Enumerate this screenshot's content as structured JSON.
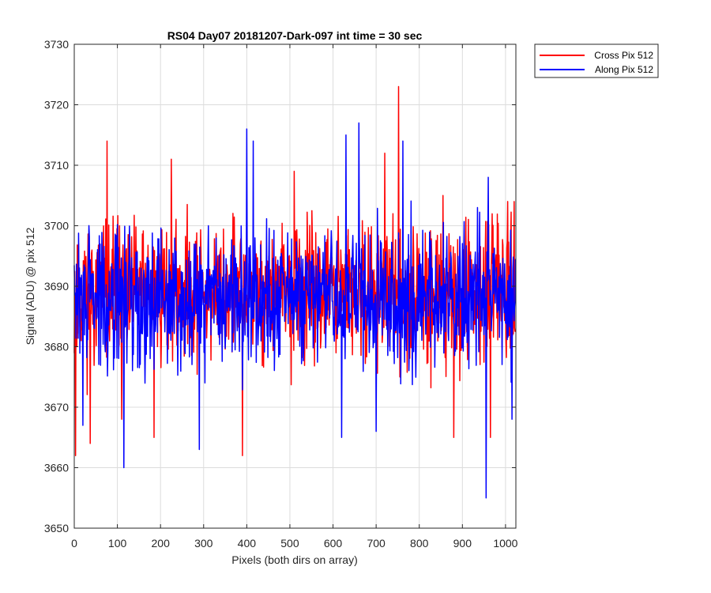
{
  "chart_data": {
    "type": "line",
    "title": "RS04 Day07 20181207-Dark-097 int time = 30 sec",
    "xlabel": "Pixels (both dirs on array)",
    "ylabel": "Signal (ADU) @ pix 512",
    "xlim": [
      0,
      1024
    ],
    "ylim": [
      3650,
      3730
    ],
    "xticks": [
      0,
      100,
      200,
      300,
      400,
      500,
      600,
      700,
      800,
      900,
      1000
    ],
    "yticks": [
      3650,
      3660,
      3670,
      3680,
      3690,
      3700,
      3710,
      3720,
      3730
    ],
    "grid": true,
    "legend_position": "outside-top-right",
    "series": [
      {
        "name": "Cross Pix 512",
        "color": "#ff0000",
        "baseline": 3689,
        "spread": 5.5,
        "count": 1024,
        "seed": 11,
        "spikes": [
          {
            "x": 3,
            "y": 3662
          },
          {
            "x": 37,
            "y": 3664
          },
          {
            "x": 76,
            "y": 3714
          },
          {
            "x": 105,
            "y": 3700
          },
          {
            "x": 110,
            "y": 3668
          },
          {
            "x": 185,
            "y": 3665
          },
          {
            "x": 225,
            "y": 3711
          },
          {
            "x": 390,
            "y": 3662
          },
          {
            "x": 510,
            "y": 3709
          },
          {
            "x": 720,
            "y": 3712
          },
          {
            "x": 752,
            "y": 3723
          },
          {
            "x": 755,
            "y": 3675
          },
          {
            "x": 855,
            "y": 3705
          },
          {
            "x": 880,
            "y": 3665
          },
          {
            "x": 965,
            "y": 3665
          },
          {
            "x": 1005,
            "y": 3704
          },
          {
            "x": 1020,
            "y": 3704
          }
        ]
      },
      {
        "name": "Along Pix 512",
        "color": "#0000ff",
        "baseline": 3688,
        "spread": 5.5,
        "count": 1024,
        "seed": 29,
        "spikes": [
          {
            "x": 20,
            "y": 3667
          },
          {
            "x": 115,
            "y": 3660
          },
          {
            "x": 290,
            "y": 3663
          },
          {
            "x": 400,
            "y": 3716
          },
          {
            "x": 415,
            "y": 3714
          },
          {
            "x": 620,
            "y": 3665
          },
          {
            "x": 630,
            "y": 3715
          },
          {
            "x": 660,
            "y": 3717
          },
          {
            "x": 700,
            "y": 3666
          },
          {
            "x": 762,
            "y": 3714
          },
          {
            "x": 955,
            "y": 3655
          },
          {
            "x": 935,
            "y": 3703
          },
          {
            "x": 960,
            "y": 3708
          },
          {
            "x": 1015,
            "y": 3668
          }
        ]
      }
    ]
  }
}
